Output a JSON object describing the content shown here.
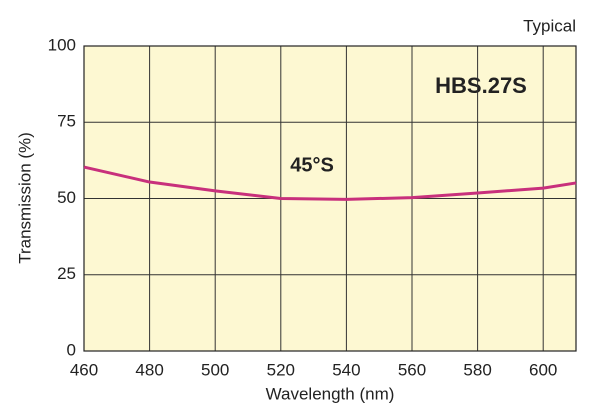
{
  "chart_data": {
    "type": "line",
    "title": "HBS.27S",
    "note": "Typical",
    "x_label": "Wavelength (nm)",
    "y_label": "Transmission (%)",
    "x": [
      460,
      480,
      500,
      520,
      540,
      560,
      580,
      600,
      610
    ],
    "series": [
      {
        "name": "45°S",
        "color": "#c8307c",
        "values": [
          60.3,
          55.4,
          52.5,
          50,
          49.7,
          50.3,
          51.8,
          53.4,
          55.1
        ]
      }
    ],
    "xlim": [
      460,
      610
    ],
    "ylim": [
      0,
      100
    ],
    "xticks": [
      460,
      480,
      500,
      520,
      540,
      560,
      580,
      600
    ],
    "yticks": [
      0,
      25,
      50,
      75,
      100
    ],
    "grid": true,
    "background": "#fdf8d2"
  }
}
